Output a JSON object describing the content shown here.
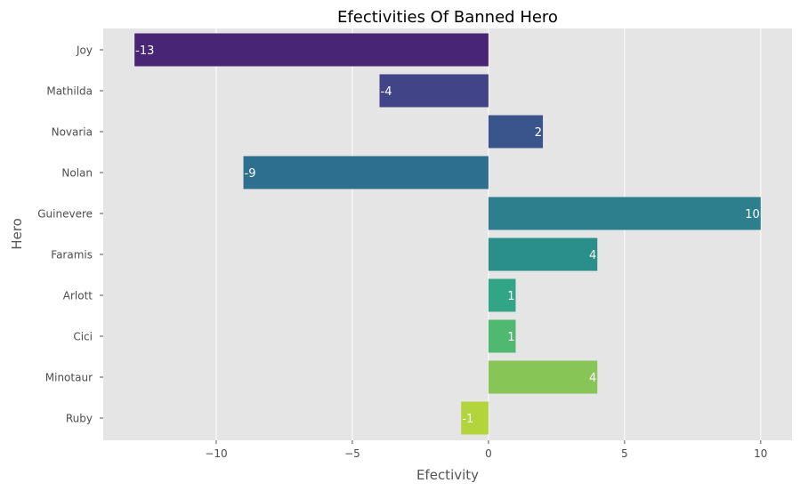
{
  "chart_data": {
    "type": "bar",
    "orientation": "horizontal",
    "title": "Efectivities Of Banned Hero",
    "xlabel": "Efectivity",
    "ylabel": "Hero",
    "categories": [
      "Joy",
      "Mathilda",
      "Novaria",
      "Nolan",
      "Guinevere",
      "Faramis",
      "Arlott",
      "Cici",
      "Minotaur",
      "Ruby"
    ],
    "values": [
      -13,
      -4,
      2,
      -9,
      10,
      4,
      1,
      1,
      4,
      -1
    ],
    "data_labels": [
      "-13",
      "-4",
      "2",
      "-9",
      "10",
      "4",
      "1",
      "1",
      "4",
      "-1"
    ],
    "xlim": [
      -14.15,
      11.15
    ],
    "x_ticks": [
      -10,
      -5,
      0,
      5,
      10
    ],
    "x_tick_labels": [
      "−10",
      "−5",
      "0",
      "5",
      "10"
    ],
    "grid": true,
    "bar_colors": [
      "#482575",
      "#414487",
      "#3a548c",
      "#2d6f8e",
      "#2d7f8e",
      "#2a8f8a",
      "#33a587",
      "#4fb971",
      "#87c557",
      "#b3d43a"
    ],
    "background_color": "#e5e5e5",
    "grid_color": "#ffffff"
  }
}
